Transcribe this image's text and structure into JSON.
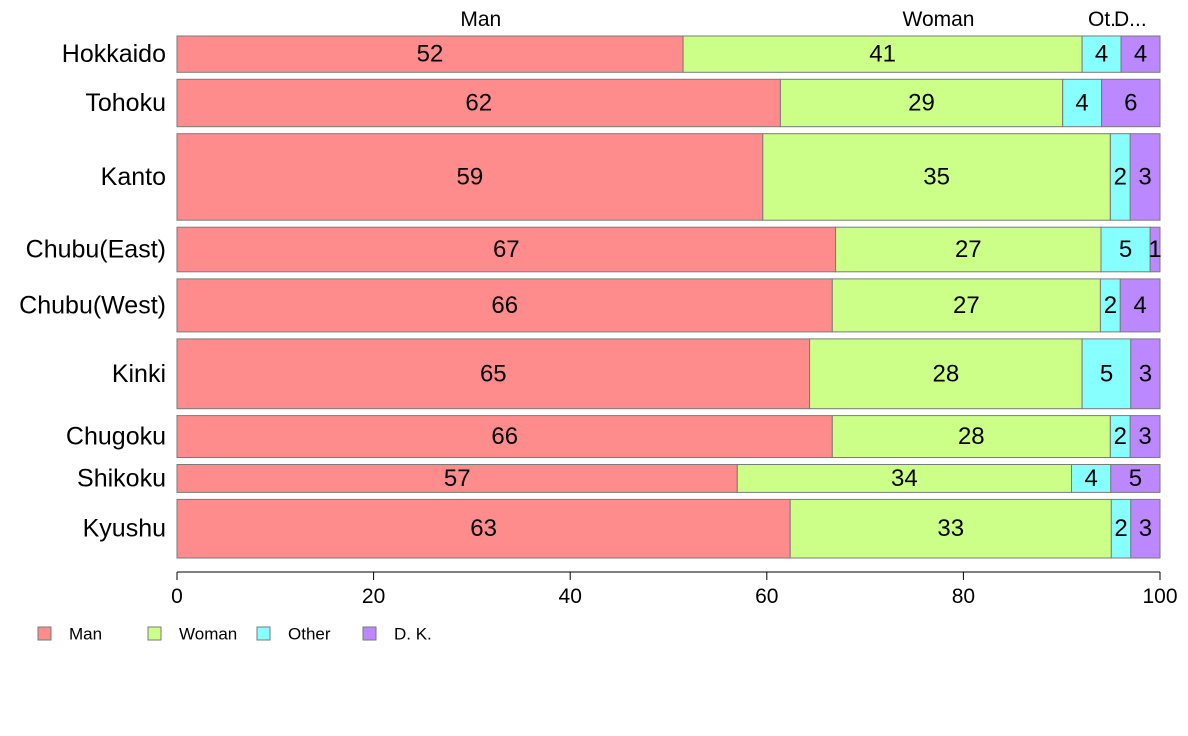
{
  "chart_data": {
    "type": "bar",
    "orientation": "horizontal",
    "stacked": true,
    "variable_width": true,
    "categories": [
      "Hokkaido",
      "Tohoku",
      "Kanto",
      "Chubu(East)",
      "Chubu(West)",
      "Kinki",
      "Chugoku",
      "Shikoku",
      "Kyushu"
    ],
    "series": [
      {
        "name": "Man",
        "color": "#ff8c8c",
        "values": [
          52,
          62,
          59,
          67,
          66,
          65,
          66,
          57,
          63
        ]
      },
      {
        "name": "Woman",
        "color": "#ccff88",
        "values": [
          41,
          29,
          35,
          27,
          27,
          28,
          28,
          34,
          33
        ]
      },
      {
        "name": "Other",
        "color": "#88ffff",
        "values": [
          4,
          4,
          2,
          5,
          2,
          5,
          2,
          4,
          2
        ]
      },
      {
        "name": "D. K.",
        "color": "#bb88ff",
        "values": [
          4,
          6,
          3,
          1,
          4,
          3,
          3,
          5,
          3
        ]
      }
    ],
    "category_weights": [
      6.5,
      8.5,
      15.5,
      8,
      9.5,
      12.5,
      7.5,
      5,
      10.5
    ],
    "top_column_labels": [
      "Man",
      "Woman",
      "Ot..",
      "D..."
    ],
    "xlim": [
      0,
      100
    ],
    "xticks": [
      0,
      20,
      40,
      60,
      80,
      100
    ],
    "xlabel": "",
    "ylabel": "",
    "grid": false,
    "legend": {
      "position": "bottom-left",
      "labels": [
        "Man",
        "Woman",
        "Other",
        "D. K."
      ]
    }
  }
}
